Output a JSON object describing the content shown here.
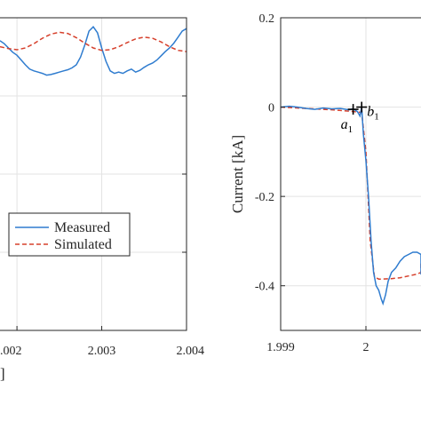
{
  "chart_data": [
    {
      "type": "line",
      "xlabel_fragment": "]",
      "xlim": [
        2.0018,
        2.004
      ],
      "xticks": [
        2.002,
        2.003,
        2.004
      ],
      "xtick_labels": [
        ".002",
        "2.003",
        "2.004"
      ],
      "legend": {
        "placement": "lower-right",
        "entries": [
          "Measured",
          "Simulated"
        ]
      },
      "grid": true,
      "series": [
        {
          "name": "Measured",
          "color": "#2f7ccf",
          "style": "solid",
          "x": [
            2.0018,
            2.00185,
            2.0019,
            2.00195,
            2.002,
            2.00205,
            2.0021,
            2.00215,
            2.0022,
            2.00225,
            2.0023,
            2.00235,
            2.0024,
            2.00245,
            2.0025,
            2.00255,
            2.0026,
            2.00265,
            2.0027,
            2.00275,
            2.0028,
            2.00285,
            2.0029,
            2.00295,
            2.003,
            2.00305,
            2.0031,
            2.00315,
            2.0032,
            2.00325,
            2.0033,
            2.00335,
            2.0034,
            2.00345,
            2.0035,
            2.00355,
            2.0036,
            2.00365,
            2.0037,
            2.00375,
            2.0038,
            2.00385,
            2.0039,
            2.00395,
            2.004
          ],
          "y": [
            0.62,
            0.57,
            0.5,
            0.43,
            0.38,
            0.3,
            0.22,
            0.15,
            0.12,
            0.1,
            0.08,
            0.05,
            0.06,
            0.08,
            0.1,
            0.12,
            0.14,
            0.17,
            0.22,
            0.35,
            0.55,
            0.78,
            0.85,
            0.75,
            0.5,
            0.28,
            0.12,
            0.08,
            0.1,
            0.08,
            0.12,
            0.15,
            0.1,
            0.13,
            0.18,
            0.22,
            0.25,
            0.3,
            0.37,
            0.44,
            0.5,
            0.58,
            0.68,
            0.78,
            0.82
          ]
        },
        {
          "name": "Simulated",
          "color": "#d6402c",
          "style": "dashed",
          "x": [
            2.0018,
            2.0019,
            2.002,
            2.0021,
            2.0022,
            2.0023,
            2.0024,
            2.0025,
            2.0026,
            2.0027,
            2.0028,
            2.0029,
            2.003,
            2.0031,
            2.0032,
            2.0033,
            2.0034,
            2.0035,
            2.0036,
            2.0037,
            2.0038,
            2.0039,
            2.004
          ],
          "y": [
            0.52,
            0.49,
            0.47,
            0.5,
            0.57,
            0.66,
            0.73,
            0.76,
            0.74,
            0.67,
            0.58,
            0.5,
            0.46,
            0.47,
            0.52,
            0.59,
            0.65,
            0.68,
            0.66,
            0.6,
            0.52,
            0.46,
            0.44
          ]
        }
      ]
    },
    {
      "type": "line",
      "ylabel": "Current [kA]",
      "xlim": [
        1.999,
        2.0012
      ],
      "ylim": [
        -0.5,
        0.2
      ],
      "xticks": [
        1.999,
        2.0
      ],
      "xtick_labels": [
        "1.999",
        "2"
      ],
      "yticks": [
        0.2,
        0,
        -0.2,
        -0.4
      ],
      "ytick_labels": [
        "0.2",
        "0",
        "-0.2",
        "-0.4"
      ],
      "grid": true,
      "series": [
        {
          "name": "Measured",
          "color": "#2f7ccf",
          "style": "solid",
          "x": [
            1.999,
            1.9991,
            1.9992,
            1.9993,
            1.9994,
            1.9995,
            1.9996,
            1.9997,
            1.9998,
            1.99985,
            1.9999,
            1.99993,
            1.99995,
            1.99997,
            2.0,
            2.00003,
            2.00006,
            2.00009,
            2.00012,
            2.00015,
            2.00018,
            2.0002,
            2.00023,
            2.00026,
            2.0003,
            2.00035,
            2.0004,
            2.00045,
            2.0005,
            2.00055,
            2.0006,
            2.00065,
            2.0007,
            2.00075,
            2.0008,
            2.00085,
            2.0009,
            2.00095,
            2.001,
            2.00105,
            2.0011,
            2.00115,
            2.0012
          ],
          "y": [
            0.0,
            0.002,
            0.0,
            -0.003,
            -0.005,
            -0.002,
            -0.004,
            -0.003,
            -0.006,
            -0.004,
            -0.01,
            -0.02,
            0.0,
            -0.06,
            -0.12,
            -0.2,
            -0.3,
            -0.37,
            -0.4,
            -0.41,
            -0.43,
            -0.44,
            -0.42,
            -0.39,
            -0.37,
            -0.36,
            -0.345,
            -0.335,
            -0.33,
            -0.325,
            -0.325,
            -0.33,
            -0.335,
            -0.33,
            -0.34,
            -0.345,
            -0.35,
            -0.355,
            -0.36,
            -0.365,
            -0.37,
            -0.375,
            -0.37
          ]
        },
        {
          "name": "Simulated",
          "color": "#d6402c",
          "style": "dashed",
          "x": [
            1.999,
            1.9992,
            1.9994,
            1.9996,
            1.9998,
            1.99995,
            2.0,
            2.00005,
            2.0001,
            2.00015,
            2.0002,
            2.0003,
            2.0004,
            2.0005,
            2.0006,
            2.0007,
            2.0008,
            2.0009,
            2.001,
            2.0011,
            2.0012
          ],
          "y": [
            0.0,
            -0.002,
            -0.004,
            -0.006,
            -0.009,
            -0.012,
            -0.1,
            -0.3,
            -0.38,
            -0.385,
            -0.385,
            -0.384,
            -0.382,
            -0.378,
            -0.374,
            -0.37,
            -0.365,
            -0.36,
            -0.355,
            -0.35,
            -0.345
          ]
        }
      ],
      "annotations": [
        {
          "marker": "+",
          "x": 1.99985,
          "y": -0.005,
          "letter": "a",
          "subscript": "1"
        },
        {
          "marker": "+",
          "x": 1.99995,
          "y": 0.0,
          "letter": "b",
          "subscript": "1"
        }
      ]
    }
  ]
}
